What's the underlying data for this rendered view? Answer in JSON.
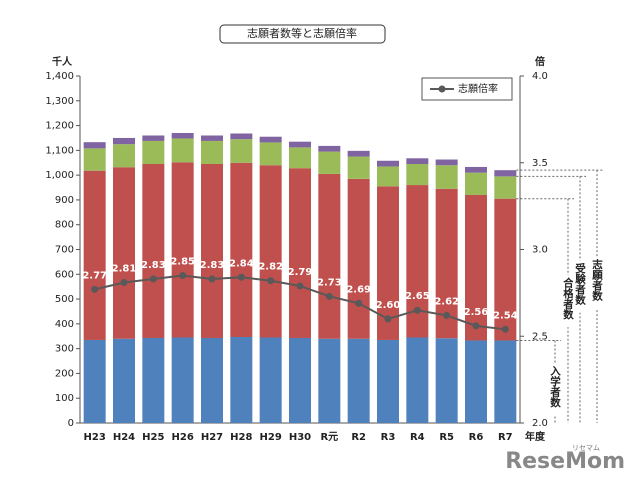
{
  "chart_data": {
    "type": "bar_line",
    "title": "志願者数等と志願倍率",
    "y_label": "千人",
    "y2_label": "倍",
    "x_unit": "年度",
    "categories": [
      "H23",
      "H24",
      "H25",
      "H26",
      "H27",
      "H28",
      "H29",
      "H30",
      "R元",
      "R2",
      "R3",
      "R4",
      "R5",
      "R6",
      "R7"
    ],
    "stacked": true,
    "series": [
      {
        "name": "入学者数",
        "color": "#4f81bd",
        "values": [
          335,
          340,
          343,
          345,
          343,
          347,
          345,
          343,
          340,
          340,
          335,
          345,
          342,
          333,
          333
        ]
      },
      {
        "name": "合格者数",
        "color": "#c0504d",
        "values": [
          683,
          692,
          702,
          707,
          702,
          703,
          695,
          685,
          665,
          645,
          620,
          615,
          603,
          587,
          572
        ]
      },
      {
        "name": "受験者数",
        "color": "#9bbb59",
        "values": [
          90,
          93,
          93,
          96,
          93,
          95,
          92,
          84,
          90,
          90,
          80,
          85,
          95,
          90,
          90
        ]
      },
      {
        "name": "志願者数",
        "color": "#8064a2",
        "values": [
          25,
          25,
          22,
          22,
          22,
          23,
          23,
          23,
          23,
          23,
          23,
          23,
          23,
          23,
          25
        ]
      },
      {
        "name": "志願倍率",
        "color": "#595959",
        "axis": "y2",
        "line": true,
        "values": [
          2.77,
          2.81,
          2.83,
          2.85,
          2.83,
          2.84,
          2.82,
          2.79,
          2.73,
          2.69,
          2.6,
          2.65,
          2.62,
          2.56,
          2.54
        ],
        "value_labels": [
          "2.77",
          "2.81",
          "2.83",
          "2.85",
          "2.83",
          "2.84",
          "2.82",
          "2.79",
          "2.73",
          "2.69",
          "2.60",
          "2.65",
          "2.62",
          "2.56",
          "2.54"
        ]
      }
    ],
    "ylim": [
      0,
      1400
    ],
    "yticks": [
      0,
      100,
      200,
      300,
      400,
      500,
      600,
      700,
      800,
      900,
      {
        "value": 1000,
        "label": "1,000"
      },
      {
        "value": 1100,
        "label": "1,100"
      },
      {
        "value": 1200,
        "label": "1,200"
      },
      {
        "value": 1300,
        "label": "1,300"
      },
      {
        "value": 1400,
        "label": "1,400"
      }
    ],
    "y2lim": [
      2.0,
      4.0
    ],
    "y2ticks": [
      {
        "value": 2.0,
        "label": "2.0"
      },
      {
        "value": 2.5,
        "label": "2.5"
      },
      {
        "value": 3.0,
        "label": "3.0"
      },
      {
        "value": 3.5,
        "label": "3.5"
      },
      {
        "value": 4.0,
        "label": "4.0"
      }
    ],
    "legend": "top-right",
    "watermark": "ReseMom",
    "watermark_kana": "リセマム"
  }
}
